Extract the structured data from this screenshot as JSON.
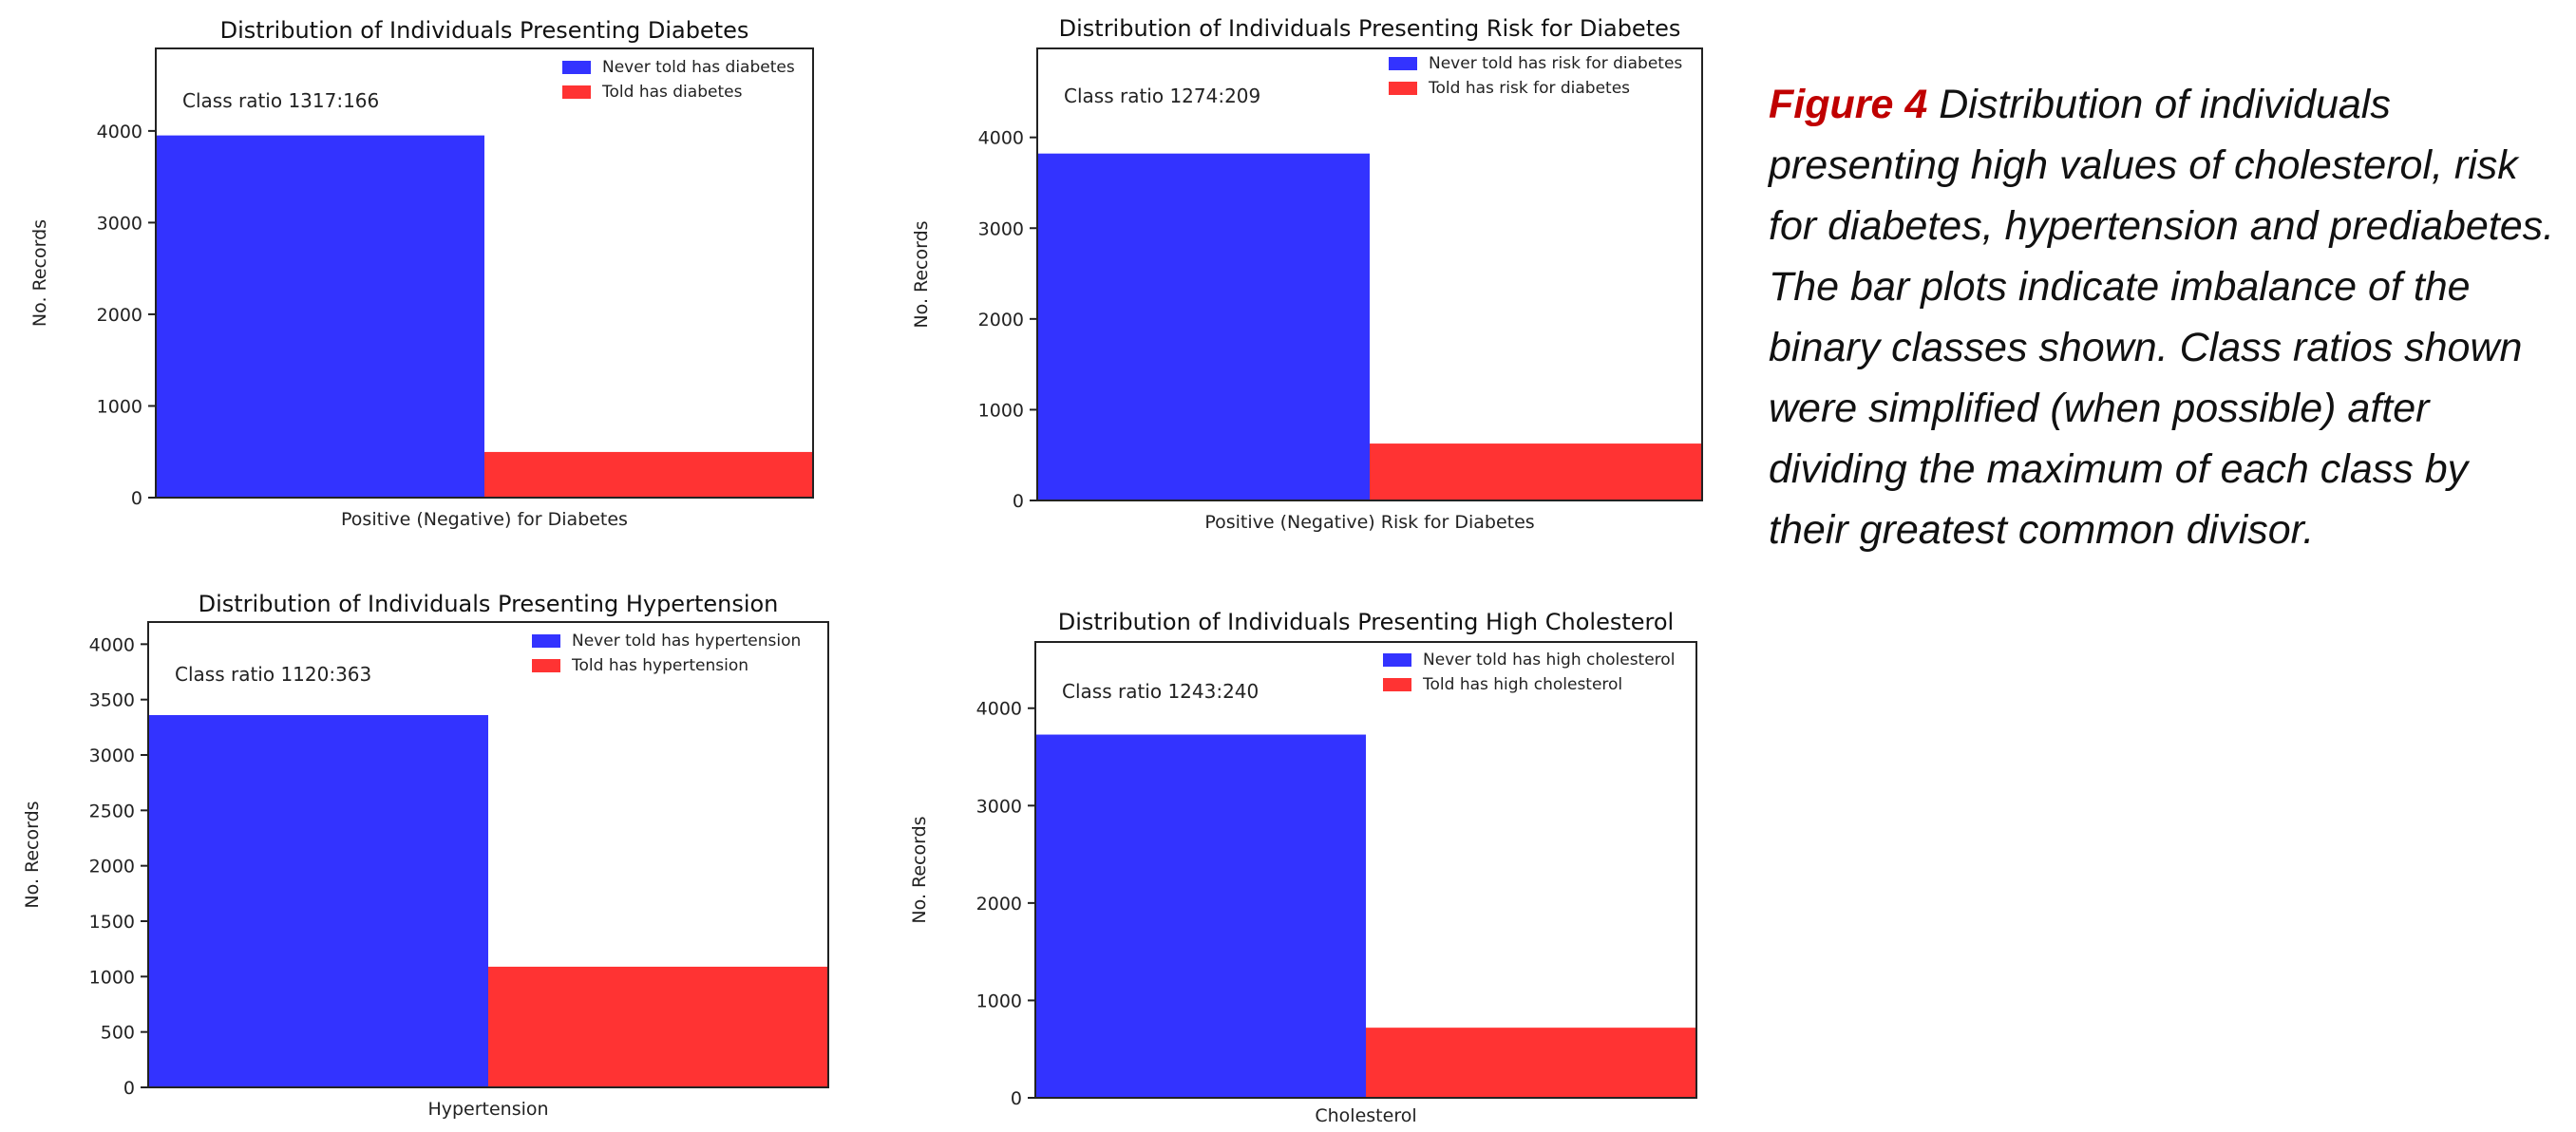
{
  "chart_data": [
    {
      "type": "bar",
      "title": "Distribution of Individuals Presenting Diabetes",
      "xlabel": "Positive (Negative) for Diabetes",
      "ylabel": "No. Records",
      "ylim": [
        0,
        4900
      ],
      "yticks": [
        0,
        1000,
        2000,
        3000,
        4000
      ],
      "annotation": "Class ratio 1317:166",
      "legend_position": "upper-right",
      "series": [
        {
          "name": "Never told has diabetes",
          "values": [
            3951
          ],
          "color": "#3333ff"
        },
        {
          "name": "Told has diabetes",
          "values": [
            498
          ],
          "color": "#ff3333"
        }
      ]
    },
    {
      "type": "bar",
      "title": "Distribution of Individuals Presenting Risk for Diabetes",
      "xlabel": "Positive (Negative) Risk for Diabetes",
      "ylabel": "No. Records",
      "ylim": [
        0,
        4980
      ],
      "yticks": [
        0,
        1000,
        2000,
        3000,
        4000
      ],
      "annotation": "Class ratio 1274:209",
      "legend_position": "upper-right",
      "series": [
        {
          "name": "Never told has risk for diabetes",
          "values": [
            3822
          ],
          "color": "#3333ff"
        },
        {
          "name": "Told has risk for diabetes",
          "values": [
            627
          ],
          "color": "#ff3333"
        }
      ]
    },
    {
      "type": "bar",
      "title": "Distribution of Individuals Presenting Hypertension",
      "xlabel": "Hypertension",
      "ylabel": "No. Records",
      "ylim": [
        0,
        4200
      ],
      "yticks": [
        0,
        500,
        1000,
        1500,
        2000,
        2500,
        3000,
        3500,
        4000
      ],
      "annotation": "Class ratio 1120:363",
      "legend_position": "upper-right",
      "series": [
        {
          "name": "Never told has hypertension",
          "values": [
            3360
          ],
          "color": "#3333ff"
        },
        {
          "name": "Told has hypertension",
          "values": [
            1089
          ],
          "color": "#ff3333"
        }
      ]
    },
    {
      "type": "bar",
      "title": "Distribution of Individuals Presenting High Cholesterol",
      "xlabel": "Cholesterol",
      "ylabel": "No. Records",
      "ylim": [
        0,
        4680
      ],
      "yticks": [
        0,
        1000,
        2000,
        3000,
        4000
      ],
      "annotation": "Class ratio 1243:240",
      "legend_position": "upper-right",
      "series": [
        {
          "name": "Never told has high cholesterol",
          "values": [
            3729
          ],
          "color": "#3333ff"
        },
        {
          "name": "Told has high cholesterol",
          "values": [
            720
          ],
          "color": "#ff3333"
        }
      ]
    }
  ],
  "caption": {
    "figure_label": "Figure 4",
    "text": "Distribution of individuals presenting high values of cholesterol, risk for diabetes, hypertension and prediabetes. The bar plots indicate imbalance of the binary classes shown. Class ratios shown were simplified (when possible) after dividing the maximum of each class by their greatest common divisor."
  }
}
